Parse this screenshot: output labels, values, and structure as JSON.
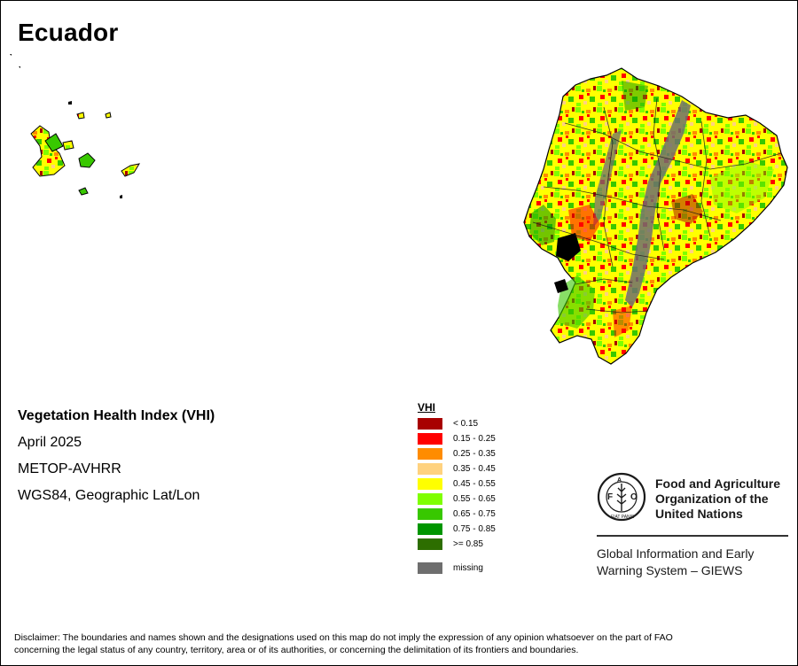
{
  "map_title": "Ecuador",
  "info": {
    "product": "Vegetation Health Index (VHI)",
    "period": "April 2025",
    "sensor": "METOP-AVHRR",
    "projection": "WGS84, Geographic Lat/Lon"
  },
  "legend": {
    "title": "VHI",
    "classes": [
      {
        "label": "< 0.15",
        "color": "#a80000"
      },
      {
        "label": "0.15 - 0.25",
        "color": "#ff0000"
      },
      {
        "label": "0.25 - 0.35",
        "color": "#ff8c00"
      },
      {
        "label": "0.35 - 0.45",
        "color": "#ffd27f"
      },
      {
        "label": "0.45 - 0.55",
        "color": "#ffff00"
      },
      {
        "label": "0.55 - 0.65",
        "color": "#7fff00"
      },
      {
        "label": "0.65 - 0.75",
        "color": "#38c800"
      },
      {
        "label": "0.75 - 0.85",
        "color": "#009600"
      },
      {
        "label": ">= 0.85",
        "color": "#2d6e00"
      }
    ],
    "missing": {
      "label": "missing",
      "color": "#6e6e6e"
    }
  },
  "fao": {
    "name_lines": [
      "Food and Agriculture",
      "Organization of the",
      "United Nations"
    ],
    "logo_text": "FIAT PANIS",
    "giews_lines": [
      "Global Information and Early",
      "Warning System – GIEWS"
    ]
  },
  "disclaimer_lines": [
    "Disclaimer: The boundaries and names shown and the designations used on this map do not imply the expression of any opinion whatsoever on the part of FAO",
    "concerning the legal status of any country, territory, area or of its authorities, or concerning the delimitation of its frontiers and boundaries."
  ]
}
